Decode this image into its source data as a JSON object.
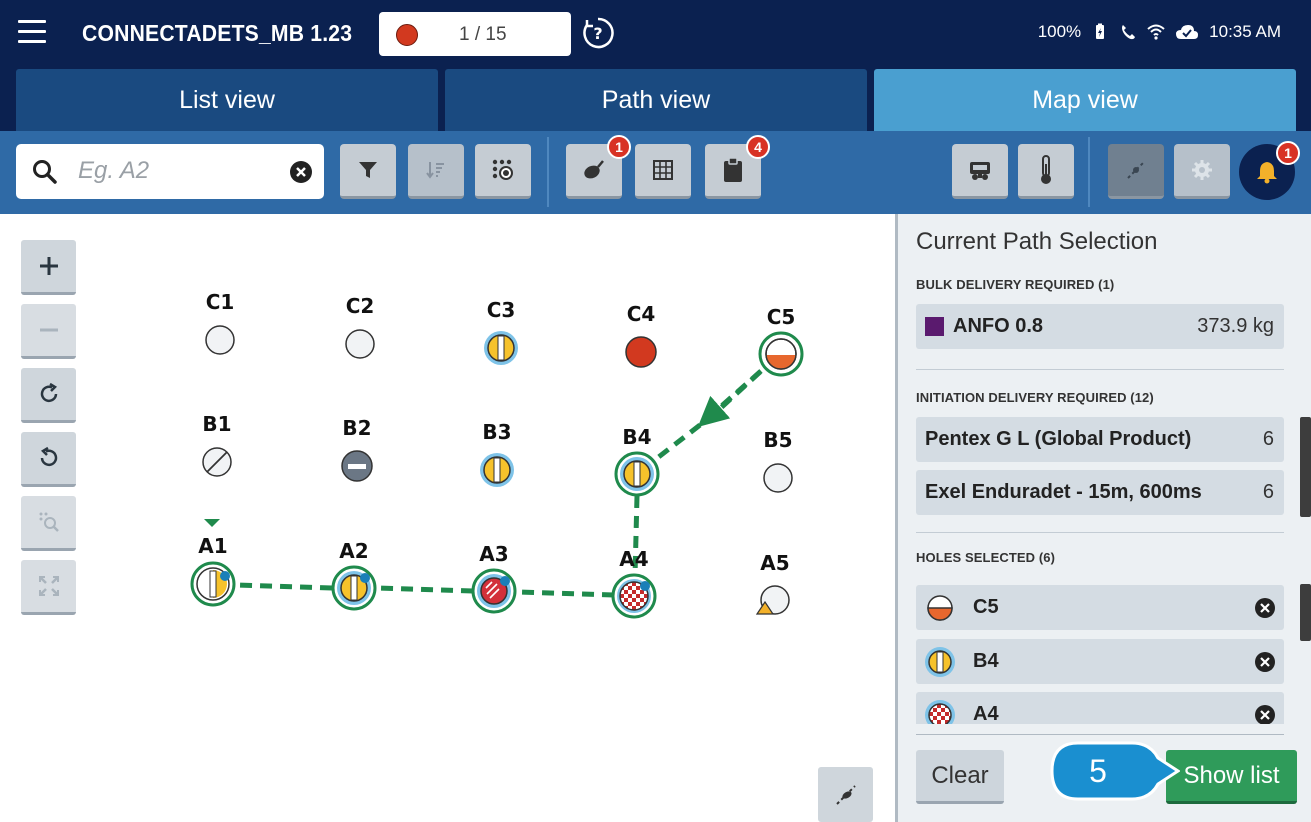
{
  "header": {
    "app_title": "CONNECTADETS_MB 1.23",
    "counter": "1 / 15",
    "battery": "100%",
    "time": "10:35 AM",
    "icons": [
      "menu-icon",
      "help-icon",
      "battery-charging-icon",
      "phone-icon",
      "wifi-icon",
      "cloud-check-icon"
    ]
  },
  "tabs": [
    {
      "label": "List view",
      "active": false
    },
    {
      "label": "Path view",
      "active": false
    },
    {
      "label": "Map view",
      "active": true
    }
  ],
  "toolbar": {
    "search_placeholder": "Eg. A2",
    "search_value": "",
    "buttons": [
      {
        "name": "filter-button",
        "icon": "filter-icon"
      },
      {
        "name": "sort-button",
        "icon": "sort-icon",
        "disabled": true
      },
      {
        "name": "pattern-button",
        "icon": "pattern-icon"
      },
      {
        "name": "detonator-button",
        "icon": "detonator-icon",
        "badge": "1"
      },
      {
        "name": "grid-button",
        "icon": "grid-icon"
      },
      {
        "name": "clipboard-button",
        "icon": "clipboard-icon",
        "badge": "4"
      },
      {
        "name": "truck-button",
        "icon": "truck-icon"
      },
      {
        "name": "thermometer-button",
        "icon": "thermometer-icon"
      },
      {
        "name": "path-tool-button",
        "icon": "path-tool-icon",
        "disabled": true
      },
      {
        "name": "settings-button",
        "icon": "gear-icon",
        "disabled": true
      },
      {
        "name": "notifications-button",
        "icon": "bell-icon",
        "badge": "1"
      }
    ]
  },
  "map": {
    "zoom_controls": [
      "zoom-in",
      "zoom-out",
      "rotate-clockwise",
      "rotate-counterclockwise",
      "zoom-selection",
      "fit-to-screen"
    ],
    "holes": [
      {
        "id": "C1",
        "state": "empty"
      },
      {
        "id": "C2",
        "state": "empty"
      },
      {
        "id": "C3",
        "state": "loaded"
      },
      {
        "id": "C4",
        "state": "red"
      },
      {
        "id": "C5",
        "state": "half-orange"
      },
      {
        "id": "B1",
        "state": "slashed"
      },
      {
        "id": "B2",
        "state": "minus"
      },
      {
        "id": "B3",
        "state": "loaded"
      },
      {
        "id": "B4",
        "state": "loaded"
      },
      {
        "id": "B5",
        "state": "empty"
      },
      {
        "id": "A1",
        "state": "loaded"
      },
      {
        "id": "A2",
        "state": "loaded"
      },
      {
        "id": "A3",
        "state": "red-striped"
      },
      {
        "id": "A4",
        "state": "checkered"
      },
      {
        "id": "A5",
        "state": "warning"
      }
    ],
    "path": [
      "C5",
      "B4",
      "A4",
      "A3",
      "A2",
      "A1"
    ]
  },
  "panel": {
    "title": "Current Path Selection",
    "bulk_header": "BULK DELIVERY REQUIRED (1)",
    "bulk_items": [
      {
        "name": "ANFO 0.8",
        "value": "373.9 kg",
        "color": "#5a1a6e"
      }
    ],
    "init_header": "INITIATION DELIVERY REQUIRED (12)",
    "init_items": [
      {
        "name": "Pentex G L (Global Product)",
        "value": "6"
      },
      {
        "name": "Exel Enduradet - 15m, 600ms",
        "value": "6"
      }
    ],
    "holes_header": "HOLES SELECTED (6)",
    "holes_selected": [
      {
        "id": "C5",
        "icon": "half-orange"
      },
      {
        "id": "B4",
        "icon": "loaded"
      },
      {
        "id": "A4",
        "icon": "checkered"
      }
    ],
    "clear_label": "Clear",
    "show_list_label": "Show list",
    "callout_number": "5"
  },
  "colors": {
    "header_bg": "#0b2150",
    "tab_bg": "#1a4a80",
    "tab_active": "#4a9fd0",
    "toolbar_bg": "#2f6aa6",
    "path_green": "#1f8a4c",
    "accent_green": "#2f9b5a",
    "callout_blue": "#1a8fd0"
  }
}
